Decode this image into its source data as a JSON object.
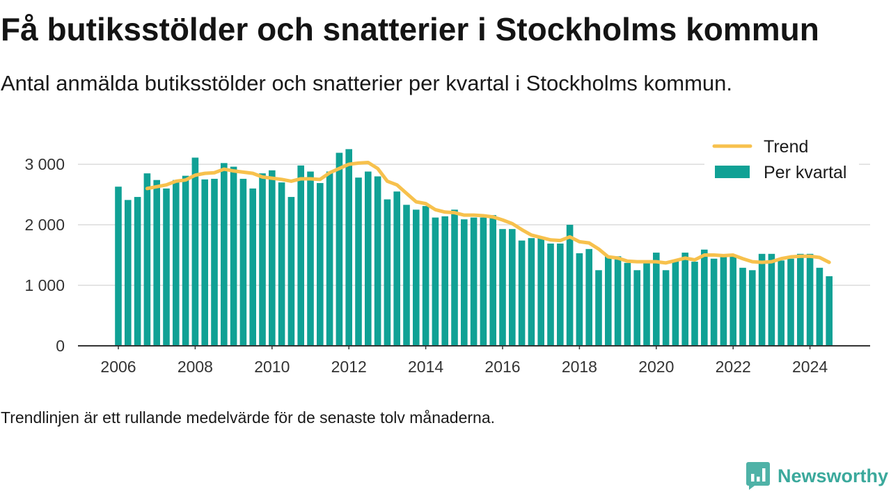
{
  "chart_data": {
    "type": "bar",
    "title": "Få butiksstölder och snatterier i Stockholms kommun",
    "subtitle": "Antal anmälda butiksstölder och snatterier per kvartal i Stockholms kommun.",
    "note": "Trendlinjen är ett rullande medelvärde för de senaste tolv månaderna.",
    "x": [
      2006,
      2006.25,
      2006.5,
      2006.75,
      2007,
      2007.25,
      2007.5,
      2007.75,
      2008,
      2008.25,
      2008.5,
      2008.75,
      2009,
      2009.25,
      2009.5,
      2009.75,
      2010,
      2010.25,
      2010.5,
      2010.75,
      2011,
      2011.25,
      2011.5,
      2011.75,
      2012,
      2012.25,
      2012.5,
      2012.75,
      2013,
      2013.25,
      2013.5,
      2013.75,
      2014,
      2014.25,
      2014.5,
      2014.75,
      2015,
      2015.25,
      2015.5,
      2015.75,
      2016,
      2016.25,
      2016.5,
      2016.75,
      2017,
      2017.25,
      2017.5,
      2017.75,
      2018,
      2018.25,
      2018.5,
      2018.75,
      2019,
      2019.25,
      2019.5,
      2019.75,
      2020,
      2020.25,
      2020.5,
      2020.75,
      2021,
      2021.25,
      2021.5,
      2021.75,
      2022,
      2022.25,
      2022.5,
      2022.75,
      2023,
      2023.25,
      2023.5,
      2023.75,
      2024,
      2024.25,
      2024.5
    ],
    "series": [
      {
        "name": "Per kvartal",
        "type": "bar",
        "color": "#10a195",
        "values": [
          2630,
          2410,
          2460,
          2850,
          2740,
          2600,
          2740,
          2810,
          3110,
          2750,
          2760,
          3020,
          2960,
          2760,
          2600,
          2850,
          2900,
          2700,
          2460,
          2980,
          2880,
          2690,
          2880,
          3190,
          3250,
          2780,
          2880,
          2800,
          2420,
          2550,
          2330,
          2250,
          2310,
          2120,
          2140,
          2250,
          2090,
          2120,
          2120,
          2160,
          1930,
          1930,
          1740,
          1780,
          1780,
          1690,
          1690,
          2000,
          1530,
          1600,
          1250,
          1480,
          1480,
          1370,
          1250,
          1410,
          1540,
          1250,
          1410,
          1540,
          1390,
          1590,
          1440,
          1480,
          1480,
          1290,
          1250,
          1520,
          1520,
          1410,
          1440,
          1520,
          1520,
          1290,
          1150
        ]
      },
      {
        "name": "Trend",
        "type": "line",
        "color": "#f7c14d",
        "values": [
          null,
          null,
          null,
          2600,
          2630,
          2660,
          2720,
          2740,
          2820,
          2850,
          2860,
          2920,
          2890,
          2870,
          2850,
          2790,
          2770,
          2750,
          2720,
          2760,
          2760,
          2750,
          2860,
          2930,
          3000,
          3020,
          3030,
          2930,
          2720,
          2660,
          2520,
          2380,
          2350,
          2250,
          2210,
          2200,
          2160,
          2160,
          2150,
          2130,
          2080,
          2020,
          1920,
          1830,
          1790,
          1750,
          1740,
          1800,
          1720,
          1700,
          1600,
          1470,
          1450,
          1400,
          1390,
          1390,
          1390,
          1370,
          1410,
          1450,
          1420,
          1500,
          1500,
          1490,
          1500,
          1440,
          1390,
          1380,
          1390,
          1440,
          1470,
          1480,
          1480,
          1460,
          1380
        ]
      }
    ],
    "x_ticks": [
      {
        "value": 2006,
        "label": "2006"
      },
      {
        "value": 2008,
        "label": "2008"
      },
      {
        "value": 2010,
        "label": "2010"
      },
      {
        "value": 2012,
        "label": "2012"
      },
      {
        "value": 2014,
        "label": "2014"
      },
      {
        "value": 2016,
        "label": "2016"
      },
      {
        "value": 2018,
        "label": "2018"
      },
      {
        "value": 2020,
        "label": "2020"
      },
      {
        "value": 2022,
        "label": "2022"
      },
      {
        "value": 2024,
        "label": "2024"
      }
    ],
    "y_ticks": [
      {
        "value": 0,
        "label": "0"
      },
      {
        "value": 1000,
        "label": "1 000"
      },
      {
        "value": 2000,
        "label": "2 000"
      },
      {
        "value": 3000,
        "label": "3 000"
      }
    ],
    "ylim": [
      0,
      3300
    ],
    "grid": true,
    "legend": {
      "placement": "top-right"
    }
  },
  "logo": {
    "text": "Newsworthy",
    "icon": "newsworthy-logo-icon",
    "color": "#3ba99c",
    "icon_color": "#4fb2a7"
  }
}
